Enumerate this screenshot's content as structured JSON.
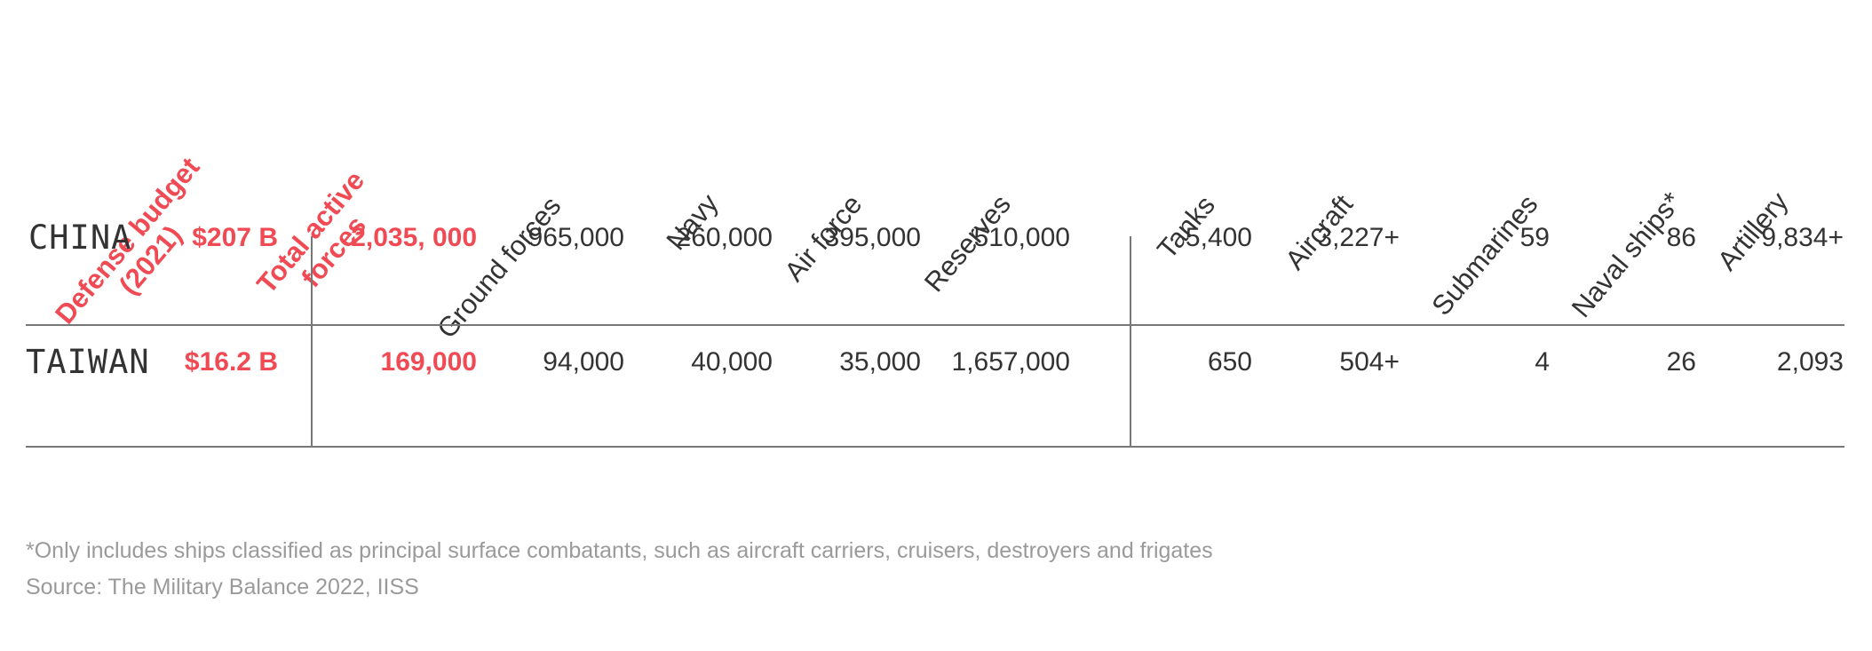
{
  "chart_data": {
    "type": "table",
    "columns": [
      {
        "key": "budget",
        "lines": [
          "Defense budget",
          "(2021)"
        ],
        "accent": true
      },
      {
        "key": "active",
        "lines": [
          "Total active",
          "forces"
        ],
        "accent": true
      },
      {
        "key": "ground",
        "lines": [
          "Ground forces"
        ],
        "accent": false
      },
      {
        "key": "navy",
        "lines": [
          "Navy"
        ],
        "accent": false
      },
      {
        "key": "airforce",
        "lines": [
          "Air force"
        ],
        "accent": false
      },
      {
        "key": "reserves",
        "lines": [
          "Reserves"
        ],
        "accent": false
      },
      {
        "key": "tanks",
        "lines": [
          "Tanks"
        ],
        "accent": false
      },
      {
        "key": "aircraft",
        "lines": [
          "Aircraft"
        ],
        "accent": false
      },
      {
        "key": "submarines",
        "lines": [
          "Submarines"
        ],
        "accent": false
      },
      {
        "key": "naval",
        "lines": [
          "Naval ships*"
        ],
        "accent": false
      },
      {
        "key": "artillery",
        "lines": [
          "Artillery"
        ],
        "accent": false
      }
    ],
    "rows": [
      {
        "country": "CHINA",
        "values": [
          "$207 B",
          "2,035, 000",
          "965,000",
          "260,000",
          "395,000",
          "510,000",
          "5,400",
          "3,227+",
          "59",
          "86",
          "9,834+"
        ],
        "numeric": [
          207,
          2035000,
          965000,
          260000,
          395000,
          510000,
          5400,
          3227,
          59,
          86,
          9834
        ]
      },
      {
        "country": "TAIWAN",
        "values": [
          "$16.2 B",
          "169,000",
          "94,000",
          "40,000",
          "35,000",
          "1,657,000",
          "650",
          "504+",
          "4",
          "26",
          "2,093"
        ],
        "numeric": [
          16.2,
          169000,
          94000,
          40000,
          35000,
          1657000,
          650,
          504,
          4,
          26,
          2093
        ]
      }
    ]
  },
  "footnote": "*Only includes ships classified as principal surface combatants, such as aircraft carriers, cruisers, destroyers and frigates",
  "source": "Source: The Military Balance 2022, IISS",
  "colors": {
    "accent": "#f04b54",
    "text": "#333333",
    "muted": "#9a9a9a",
    "rule": "#777777"
  }
}
